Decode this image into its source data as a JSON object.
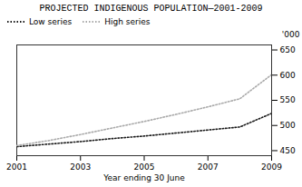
{
  "chart_data": {
    "type": "line",
    "title": "PROJECTED INDIGENOUS POPULATION—2001-2009",
    "xlabel": "Year ending 30 June",
    "ylabel": "'000",
    "x": [
      2001,
      2002,
      2003,
      2004,
      2005,
      2006,
      2007,
      2008,
      2009
    ],
    "series": [
      {
        "name": "Low series",
        "color": "#1a1a1a",
        "line_style": "dotted",
        "values": [
          458,
          463,
          468,
          474,
          479,
          485,
          491,
          497,
          524
        ]
      },
      {
        "name": "High series",
        "color": "#aaaaaa",
        "line_style": "dotted",
        "values": [
          460,
          470,
          482,
          495,
          508,
          522,
          537,
          553,
          601
        ]
      }
    ],
    "xlim": [
      2001,
      2009
    ],
    "xticks": [
      2001,
      2003,
      2005,
      2007,
      2009
    ],
    "ylim": [
      440,
      660
    ],
    "yticks": [
      450,
      500,
      550,
      600,
      650
    ],
    "grid": false,
    "legend": "upper left"
  }
}
